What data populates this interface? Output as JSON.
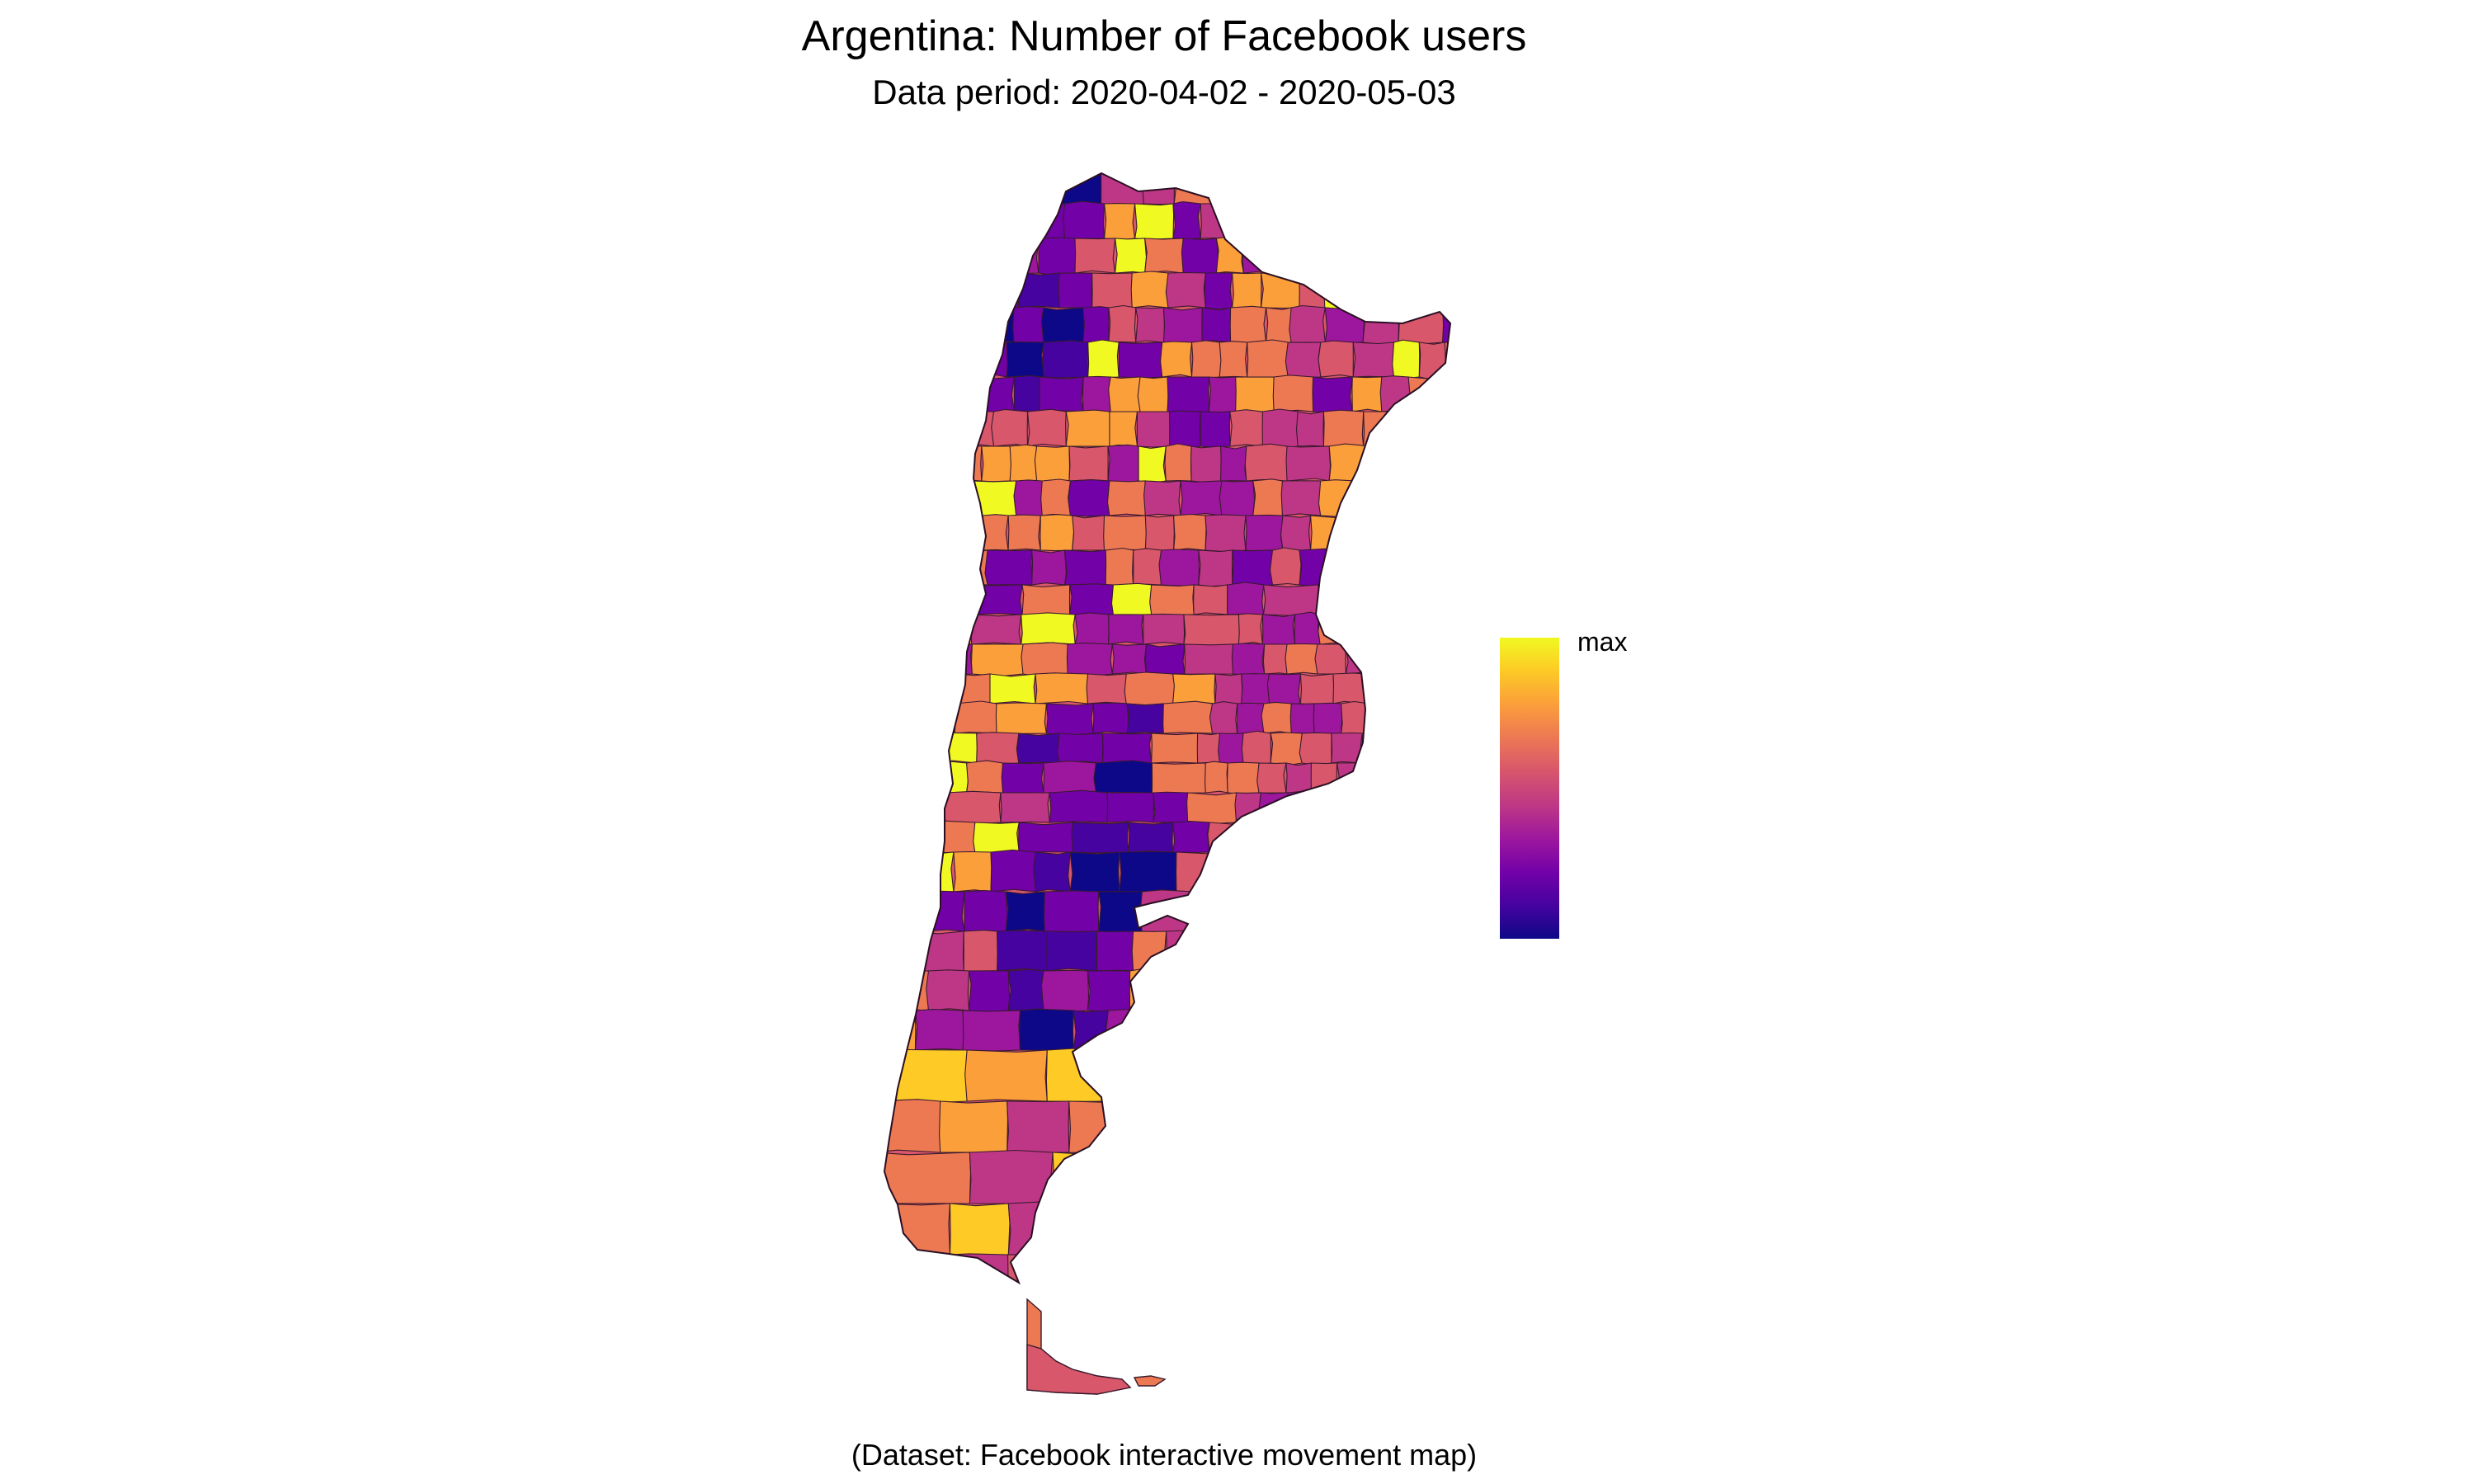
{
  "title": "Argentina: Number of Facebook users",
  "subtitle": "Data period: 2020-04-02 - 2020-05-03",
  "caption": "(Dataset: Facebook interactive movement map)",
  "legend": {
    "max_label": "max",
    "colormap": "plasma",
    "color_low": "#0d0887",
    "color_high": "#f0f921"
  },
  "map": {
    "country": "Argentina",
    "palette": [
      "#0d0887",
      "#46039f",
      "#7201a8",
      "#9c179e",
      "#bd3786",
      "#d8576b",
      "#ed7953",
      "#fb9f3a",
      "#fdca26",
      "#f0f921"
    ],
    "border_color": "#3a1a2e"
  }
}
